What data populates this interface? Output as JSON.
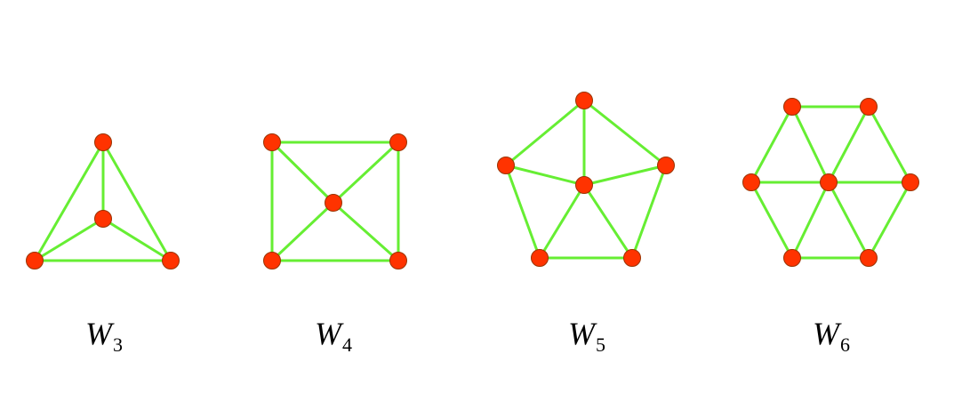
{
  "colors": {
    "edge": "#66ee33",
    "node_fill": "#ff3300",
    "node_stroke": "#993300",
    "background": "#ffffff"
  },
  "graphs": [
    {
      "caption": {
        "letter": "W",
        "index": "3"
      }
    },
    {
      "caption": {
        "letter": "W",
        "index": "4"
      }
    },
    {
      "caption": {
        "letter": "W",
        "index": "5"
      }
    },
    {
      "caption": {
        "letter": "W",
        "index": "6"
      }
    }
  ]
}
